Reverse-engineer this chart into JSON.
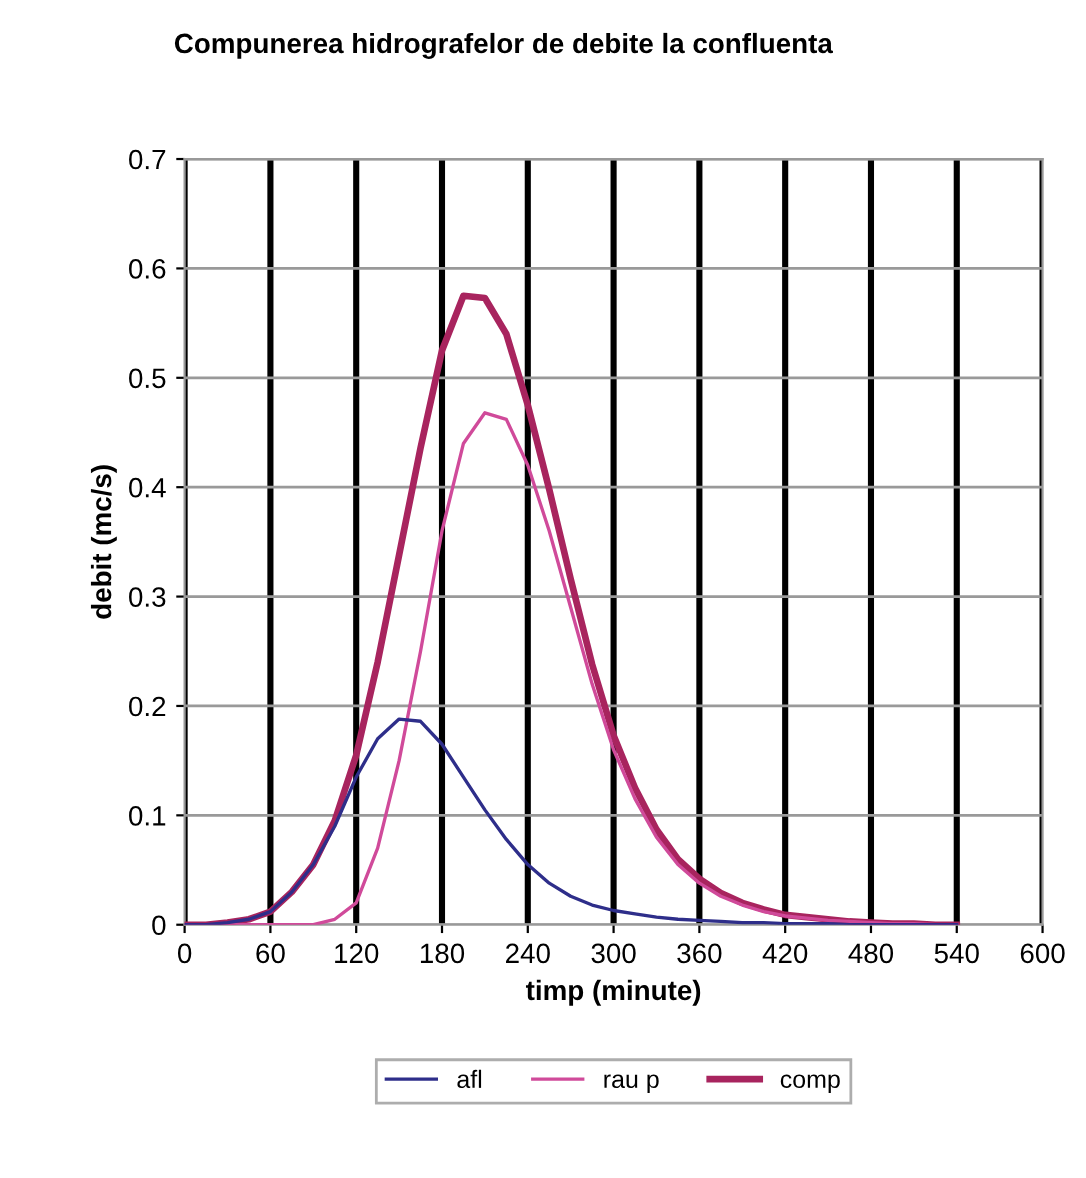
{
  "chart_data": {
    "type": "line",
    "title": "Compunerea hidrografelor de debite la confluenta",
    "xlabel": "timp (minute)",
    "ylabel": "debit (mc/s)",
    "x": [
      0,
      15,
      30,
      45,
      60,
      75,
      90,
      105,
      120,
      135,
      150,
      165,
      180,
      195,
      210,
      225,
      240,
      255,
      270,
      285,
      300,
      315,
      330,
      345,
      360,
      375,
      390,
      405,
      420,
      435,
      450,
      465,
      480,
      495,
      510,
      525,
      540
    ],
    "series": [
      {
        "name": "afl",
        "color": "#2e2e8a",
        "values": [
          0,
          0,
          0.002,
          0.005,
          0.012,
          0.03,
          0.055,
          0.09,
          0.135,
          0.17,
          0.188,
          0.186,
          0.165,
          0.135,
          0.105,
          0.078,
          0.055,
          0.038,
          0.026,
          0.018,
          0.013,
          0.01,
          0.007,
          0.005,
          0.004,
          0.003,
          0.002,
          0.002,
          0.001,
          0.001,
          0.001,
          0,
          0,
          0,
          0,
          0,
          0
        ]
      },
      {
        "name": "rau p",
        "color": "#d04a9a",
        "values": [
          0,
          0,
          0,
          0,
          0,
          0,
          0,
          0.005,
          0.02,
          0.07,
          0.15,
          0.25,
          0.36,
          0.44,
          0.468,
          0.462,
          0.42,
          0.36,
          0.29,
          0.22,
          0.16,
          0.115,
          0.08,
          0.055,
          0.038,
          0.026,
          0.018,
          0.012,
          0.008,
          0.006,
          0.004,
          0.003,
          0.002,
          0.001,
          0.001,
          0,
          0
        ]
      },
      {
        "name": "comp",
        "color": "#a8245e",
        "values": [
          0,
          0,
          0.002,
          0.005,
          0.012,
          0.03,
          0.055,
          0.095,
          0.155,
          0.24,
          0.338,
          0.436,
          0.525,
          0.575,
          0.573,
          0.54,
          0.475,
          0.398,
          0.316,
          0.238,
          0.173,
          0.125,
          0.087,
          0.06,
          0.042,
          0.029,
          0.02,
          0.014,
          0.009,
          0.007,
          0.005,
          0.003,
          0.002,
          0.001,
          0.001,
          0,
          0
        ]
      }
    ],
    "xlim": [
      0,
      600
    ],
    "xticks": [
      0,
      60,
      120,
      180,
      240,
      300,
      360,
      420,
      480,
      540,
      600
    ],
    "ylim": [
      0,
      0.7
    ],
    "yticks": [
      0,
      0.1,
      0.2,
      0.3,
      0.4,
      0.5,
      0.6,
      0.7
    ],
    "grid": true,
    "legend": "bottom",
    "marker": "none",
    "line_style": "solid"
  }
}
